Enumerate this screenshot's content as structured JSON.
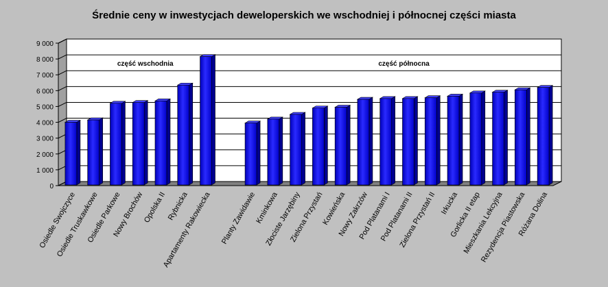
{
  "chart_data": {
    "type": "bar",
    "title": "Średnie ceny w inwestycjach deweloperskich we wschodniej i północnej części miasta",
    "xlabel": "",
    "ylabel": "",
    "ylim": [
      0,
      9000
    ],
    "yticks": [
      "0",
      "1 000",
      "2 000",
      "3 000",
      "4 000",
      "5 000",
      "6 000",
      "7 000",
      "8 000",
      "9 000"
    ],
    "grid": true,
    "bar_color": "#1a1aff",
    "groups": [
      {
        "label": "część wschodnia",
        "categories": [
          "Osiedle Swojczyce",
          "Osiedle Truskawkowe",
          "Osiedle Parkowe",
          "Nowy Brochów",
          "Opolska II",
          "Rybnicka",
          "Apartamenty Rakowiecka"
        ],
        "values": [
          4000,
          4150,
          5200,
          5250,
          5350,
          6350,
          8150
        ]
      },
      {
        "label": "część północna",
        "categories": [
          "Planty Zawidawie",
          "Kminkowa",
          "Złociste Jarzębiny",
          "Zielona Przystań",
          "Kowieńska",
          "Nowy Zakrzów",
          "Pod Platanami I",
          "Pod Platanami II",
          "Zielona Przystań II",
          "Irkucka",
          "Gorlicka II etap",
          "Mieszkania Lekcyjna",
          "Rezydencja Piastowska",
          "Różana Dolina"
        ],
        "values": [
          3950,
          4200,
          4500,
          4900,
          4950,
          5450,
          5500,
          5500,
          5550,
          5650,
          5850,
          5900,
          6050,
          6200
        ]
      }
    ]
  }
}
